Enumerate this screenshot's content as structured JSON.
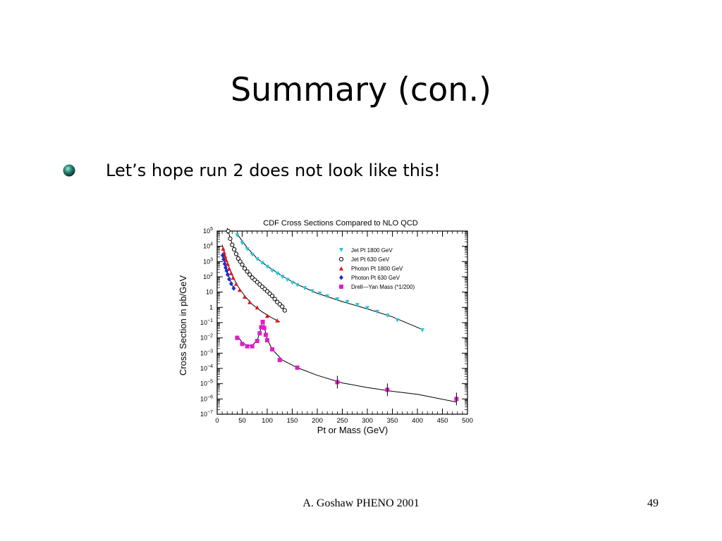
{
  "slide": {
    "title": "Summary (con.)",
    "bullet": "Let’s hope run 2 does not look like this!",
    "footer": "A. Goshaw PHENO 2001",
    "page_number": "49"
  },
  "chart_data": {
    "type": "scatter",
    "title": "CDF Cross Sections Compared to NLO QCD",
    "xlabel": "Pt or Mass (GeV)",
    "ylabel": "Cross Section in pb/GeV",
    "xlim": [
      0,
      500
    ],
    "ylim_log10": [
      -7,
      5
    ],
    "y_scale": "log",
    "x_ticks": [
      "0",
      "50",
      "100",
      "150",
      "200",
      "250",
      "300",
      "350",
      "400",
      "450",
      "500"
    ],
    "y_tick_exponents": [
      5,
      4,
      3,
      2,
      1,
      0,
      -1,
      -2,
      -3,
      -4,
      -5,
      -6,
      -7
    ],
    "legend_position": "top-right",
    "series": [
      {
        "name": "Jet Pt 1800 GeV",
        "marker": "triangle-down",
        "color": "#29c6dc",
        "points": [
          [
            40,
            4.7
          ],
          [
            50,
            4.2
          ],
          [
            60,
            3.8
          ],
          [
            70,
            3.45
          ],
          [
            80,
            3.15
          ],
          [
            90,
            2.9
          ],
          [
            100,
            2.65
          ],
          [
            110,
            2.4
          ],
          [
            120,
            2.2
          ],
          [
            130,
            2.0
          ],
          [
            140,
            1.8
          ],
          [
            150,
            1.6
          ],
          [
            160,
            1.45
          ],
          [
            175,
            1.25
          ],
          [
            190,
            1.05
          ],
          [
            205,
            0.9
          ],
          [
            220,
            0.72
          ],
          [
            240,
            0.52
          ],
          [
            260,
            0.35
          ],
          [
            280,
            0.15
          ],
          [
            300,
            -0.05
          ],
          [
            320,
            -0.3
          ],
          [
            340,
            -0.55
          ],
          [
            360,
            -0.85
          ],
          [
            410,
            -1.5
          ]
        ],
        "curve": [
          [
            40,
            4.8
          ],
          [
            60,
            3.9
          ],
          [
            80,
            3.2
          ],
          [
            100,
            2.7
          ],
          [
            130,
            2.05
          ],
          [
            160,
            1.5
          ],
          [
            200,
            0.92
          ],
          [
            250,
            0.38
          ],
          [
            300,
            -0.1
          ],
          [
            350,
            -0.62
          ],
          [
            410,
            -1.45
          ]
        ]
      },
      {
        "name": "Jet Pt 630 GeV",
        "marker": "circle-open",
        "color": "#000000",
        "points": [
          [
            22,
            5.0
          ],
          [
            26,
            4.5
          ],
          [
            30,
            4.1
          ],
          [
            34,
            3.8
          ],
          [
            38,
            3.5
          ],
          [
            42,
            3.2
          ],
          [
            46,
            3.0
          ],
          [
            50,
            2.8
          ],
          [
            55,
            2.55
          ],
          [
            60,
            2.35
          ],
          [
            65,
            2.15
          ],
          [
            70,
            1.95
          ],
          [
            75,
            1.8
          ],
          [
            80,
            1.65
          ],
          [
            85,
            1.5
          ],
          [
            90,
            1.35
          ],
          [
            95,
            1.2
          ],
          [
            100,
            1.05
          ],
          [
            105,
            0.9
          ],
          [
            110,
            0.75
          ],
          [
            115,
            0.55
          ],
          [
            120,
            0.35
          ],
          [
            125,
            0.2
          ],
          [
            130,
            0.05
          ],
          [
            135,
            -0.2
          ]
        ],
        "curve": [
          [
            20,
            5.2
          ],
          [
            30,
            4.15
          ],
          [
            45,
            3.1
          ],
          [
            60,
            2.35
          ],
          [
            75,
            1.78
          ],
          [
            90,
            1.33
          ],
          [
            105,
            0.88
          ],
          [
            120,
            0.38
          ],
          [
            135,
            -0.25
          ]
        ]
      },
      {
        "name": "Photon Pt 1800 GeV",
        "marker": "triangle-up",
        "color": "#e0151b",
        "points": [
          [
            12,
            3.85
          ],
          [
            14,
            3.6
          ],
          [
            16,
            3.35
          ],
          [
            18,
            3.1
          ],
          [
            21,
            2.85
          ],
          [
            24,
            2.55
          ],
          [
            28,
            2.25
          ],
          [
            32,
            1.95
          ],
          [
            38,
            1.55
          ],
          [
            45,
            1.15
          ],
          [
            55,
            0.7
          ],
          [
            65,
            0.35
          ],
          [
            80,
            0.0
          ],
          [
            100,
            -0.55
          ],
          [
            120,
            -0.85
          ]
        ],
        "curve": [
          [
            10,
            4.1
          ],
          [
            15,
            3.45
          ],
          [
            20,
            2.95
          ],
          [
            30,
            2.1
          ],
          [
            40,
            1.45
          ],
          [
            55,
            0.75
          ],
          [
            70,
            0.2
          ],
          [
            90,
            -0.3
          ],
          [
            110,
            -0.7
          ],
          [
            125,
            -0.95
          ]
        ]
      },
      {
        "name": "Photon Pt 630 GeV",
        "marker": "diamond",
        "color": "#1a2fd0",
        "points": [
          [
            11,
            3.4
          ],
          [
            13,
            3.15
          ],
          [
            15,
            2.85
          ],
          [
            17,
            2.6
          ],
          [
            19,
            2.4
          ],
          [
            21,
            2.15
          ],
          [
            24,
            1.85
          ],
          [
            28,
            1.55
          ],
          [
            33,
            1.25
          ]
        ],
        "curve": [
          [
            10,
            3.55
          ],
          [
            15,
            2.9
          ],
          [
            20,
            2.35
          ],
          [
            25,
            1.85
          ],
          [
            30,
            1.45
          ],
          [
            35,
            1.15
          ]
        ]
      },
      {
        "name": "Drell—Yan Mass (*1/200)",
        "marker": "square",
        "color": "#e01ec8",
        "points": [
          [
            40,
            -2.0
          ],
          [
            50,
            -2.4
          ],
          [
            60,
            -2.55
          ],
          [
            70,
            -2.55
          ],
          [
            80,
            -2.2
          ],
          [
            85,
            -1.7
          ],
          [
            88,
            -1.3
          ],
          [
            91,
            -0.95
          ],
          [
            94,
            -1.35
          ],
          [
            97,
            -1.8
          ],
          [
            100,
            -2.15
          ],
          [
            110,
            -2.75
          ],
          [
            125,
            -3.45
          ],
          [
            160,
            -3.95
          ],
          [
            240,
            -4.9
          ],
          [
            340,
            -5.4
          ],
          [
            478,
            -6.0
          ]
        ],
        "curve": [
          [
            40,
            -1.85
          ],
          [
            50,
            -2.3
          ],
          [
            60,
            -2.5
          ],
          [
            70,
            -2.5
          ],
          [
            80,
            -2.15
          ],
          [
            86,
            -1.55
          ],
          [
            90,
            -1.0
          ],
          [
            92,
            -0.9
          ],
          [
            95,
            -1.4
          ],
          [
            100,
            -2.1
          ],
          [
            110,
            -2.75
          ],
          [
            130,
            -3.45
          ],
          [
            160,
            -3.95
          ],
          [
            200,
            -4.45
          ],
          [
            250,
            -4.95
          ],
          [
            300,
            -5.25
          ],
          [
            350,
            -5.5
          ],
          [
            400,
            -5.7
          ],
          [
            478,
            -6.2
          ]
        ]
      }
    ]
  }
}
